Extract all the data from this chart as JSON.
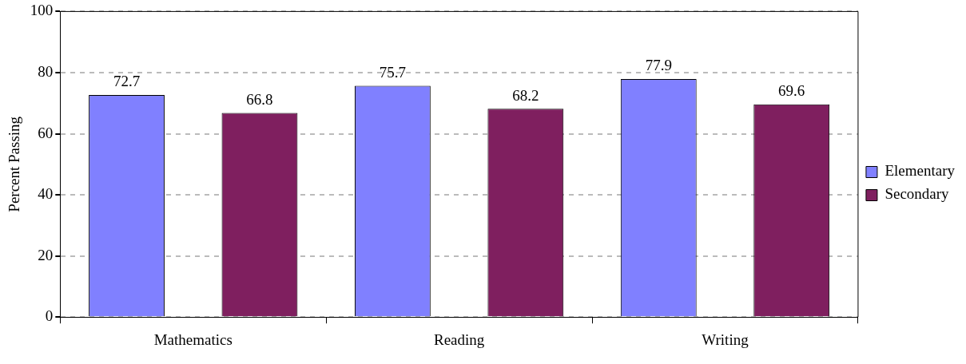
{
  "chart_data": {
    "type": "bar",
    "ylabel": "Percent Passing",
    "categories": [
      "Mathematics",
      "Reading",
      "Writing"
    ],
    "series": [
      {
        "name": "Elementary",
        "color": "#8080ff",
        "values": [
          72.7,
          75.7,
          77.9
        ]
      },
      {
        "name": "Secondary",
        "color": "#7f1f5f",
        "values": [
          66.8,
          68.2,
          69.6
        ]
      }
    ],
    "ylim": [
      0,
      100
    ],
    "yticks": [
      0,
      20,
      40,
      60,
      80,
      100
    ],
    "grid": "y",
    "legend": "right",
    "data_labels": true
  }
}
